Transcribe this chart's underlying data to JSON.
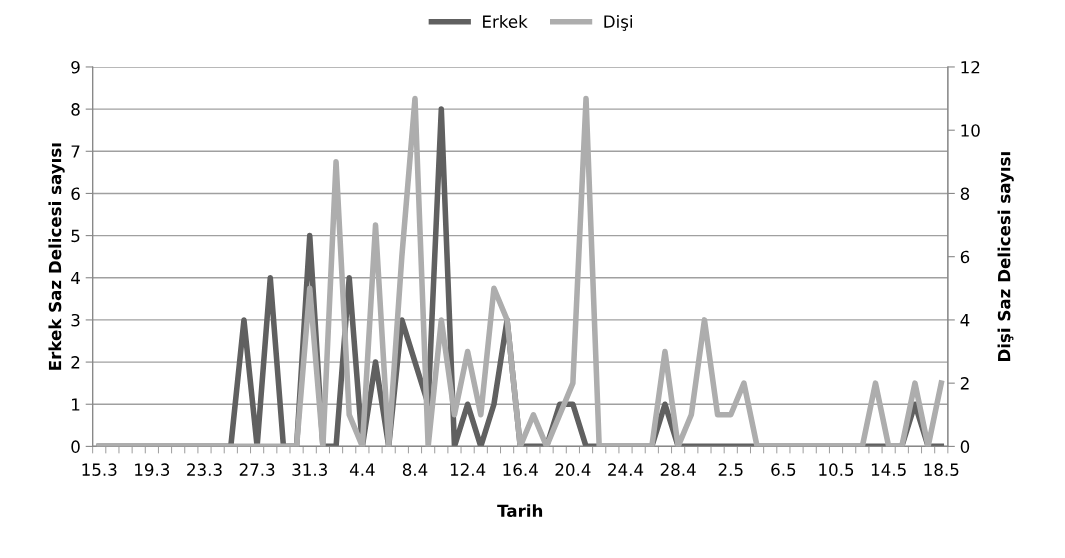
{
  "chart_data": {
    "type": "line",
    "categories": [
      "15.3",
      null,
      null,
      null,
      "19.3",
      null,
      null,
      null,
      "23.3",
      null,
      null,
      null,
      "27.3",
      null,
      null,
      null,
      "31.3",
      null,
      null,
      null,
      "4.4",
      null,
      null,
      null,
      "8.4",
      null,
      null,
      null,
      "12.4",
      null,
      null,
      null,
      "16.4",
      null,
      null,
      null,
      "20.4",
      null,
      null,
      null,
      "24.4",
      null,
      null,
      null,
      "28.4",
      null,
      null,
      null,
      "2.5",
      null,
      null,
      null,
      "6.5",
      null,
      null,
      null,
      "10.5",
      null,
      null,
      null,
      "14.5",
      null,
      null,
      null,
      "18.5"
    ],
    "series": [
      {
        "name": "Erkek",
        "color": "#606060",
        "values": [
          0,
          0,
          0,
          0,
          0,
          0,
          0,
          0,
          0,
          0,
          0,
          3,
          0,
          4,
          0,
          0,
          5,
          0,
          0,
          4,
          0,
          2,
          0,
          3,
          2,
          1,
          8,
          0,
          1,
          0,
          1,
          3,
          0,
          0,
          0,
          1,
          1,
          0,
          0,
          0,
          0,
          0,
          0,
          1,
          0,
          0,
          0,
          0,
          0,
          0,
          0,
          0,
          0,
          0,
          0,
          0,
          0,
          0,
          0,
          0,
          0,
          0,
          1,
          0,
          0
        ]
      },
      {
        "name": "Dişi",
        "color": "#adadad",
        "axis": "y2",
        "values": [
          0,
          0,
          0,
          0,
          0,
          0,
          0,
          0,
          0,
          0,
          0,
          0,
          0,
          0,
          0,
          0,
          5,
          0,
          9,
          1,
          0,
          7,
          0,
          6,
          11,
          0,
          4,
          1,
          3,
          1,
          5,
          4,
          0,
          1,
          0,
          1,
          2,
          11,
          0,
          0,
          0,
          0,
          0,
          3,
          0,
          1,
          4,
          1,
          1,
          2,
          0,
          0,
          0,
          0,
          0,
          0,
          0,
          0,
          0,
          2,
          0,
          0,
          2,
          0,
          2
        ]
      }
    ],
    "xlabel": "Tarih",
    "ylabel": "Erkek Saz Delicesi sayısı",
    "y2label": "Dişi Saz Delicesi sayısı",
    "ylim": [
      0,
      9
    ],
    "yticks": [
      0,
      1,
      2,
      3,
      4,
      5,
      6,
      7,
      8,
      9
    ],
    "y2lim": [
      0,
      12
    ],
    "y2ticks": [
      0,
      2,
      4,
      6,
      8,
      10,
      12
    ],
    "grid": "y",
    "legend": "top",
    "marker": "none",
    "line_style": "solid"
  }
}
